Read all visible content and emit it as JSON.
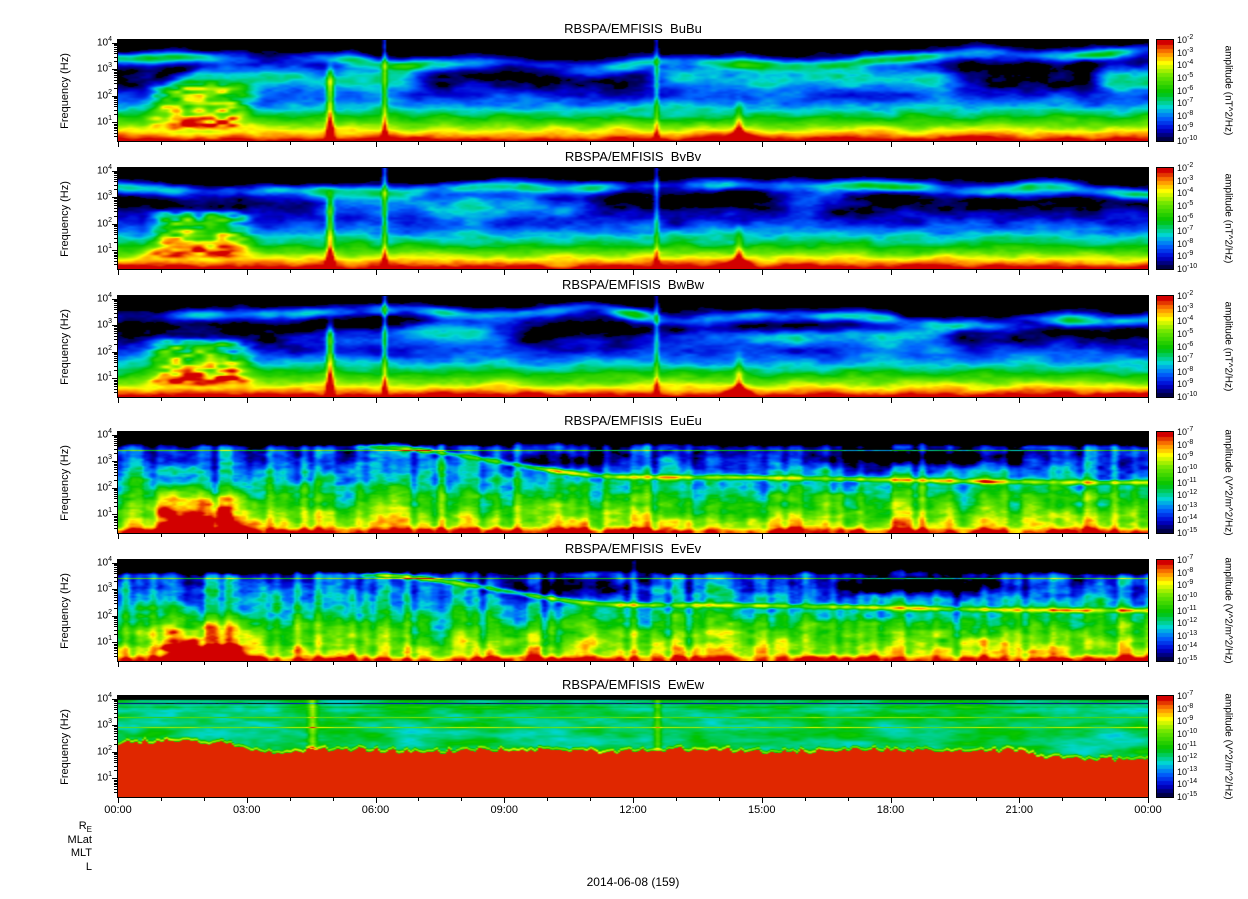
{
  "figure": {
    "date_label": "2014-06-08 (159)",
    "footer_rows": [
      {
        "main": "R",
        "sub": "E"
      },
      {
        "main": "MLat",
        "sub": ""
      },
      {
        "main": "MLT",
        "sub": ""
      },
      {
        "main": "L",
        "sub": ""
      }
    ],
    "x_axis": {
      "tick_labels": [
        "00:00",
        "03:00",
        "06:00",
        "09:00",
        "12:00",
        "15:00",
        "18:00",
        "21:00",
        "00:00"
      ],
      "minor_tick_interval": "1 hour",
      "range": [
        "2014-06-08 00:00",
        "2014-06-09 00:00"
      ]
    }
  },
  "chart_data": [
    {
      "type": "heatmap",
      "title": "RBSPA/EMFISIS  BuBu",
      "ylabel": "Frequency (Hz)",
      "y_scale": "log",
      "y_tick_exponents": [
        4,
        3,
        2,
        1
      ],
      "ylim_hz": [
        2,
        12000
      ],
      "colorbar": {
        "label": "amplitude (nT^2/Hz)",
        "tick_exponents": [
          -2,
          -3,
          -4,
          -5,
          -6,
          -7,
          -8,
          -9,
          -10
        ],
        "min": 1e-10,
        "max": 0.01
      },
      "render": {
        "kind": "B",
        "seed": 1
      },
      "features": [
        "intense broadband power at lowest frequencies (red/yellow)",
        "patchy 1-4 kHz emission band",
        "low-frequency burst structures ~00:30-03:00",
        "black (below threshold) region above ~4 kHz"
      ]
    },
    {
      "type": "heatmap",
      "title": "RBSPA/EMFISIS  BvBv",
      "ylabel": "Frequency (Hz)",
      "y_scale": "log",
      "y_tick_exponents": [
        4,
        3,
        2,
        1
      ],
      "ylim_hz": [
        2,
        12000
      ],
      "colorbar": {
        "label": "amplitude (nT^2/Hz)",
        "tick_exponents": [
          -2,
          -3,
          -4,
          -5,
          -6,
          -7,
          -8,
          -9,
          -10
        ],
        "min": 1e-10,
        "max": 0.01
      },
      "render": {
        "kind": "B",
        "seed": 2
      },
      "features": [
        "similar to BuBu: strong low-frequency band, kHz chorus band, early-morning bursts"
      ]
    },
    {
      "type": "heatmap",
      "title": "RBSPA/EMFISIS  BwBw",
      "ylabel": "Frequency (Hz)",
      "y_scale": "log",
      "y_tick_exponents": [
        4,
        3,
        2,
        1
      ],
      "ylim_hz": [
        2,
        12000
      ],
      "colorbar": {
        "label": "amplitude (nT^2/Hz)",
        "tick_exponents": [
          -2,
          -3,
          -4,
          -5,
          -6,
          -7,
          -8,
          -9,
          -10
        ],
        "min": 1e-10,
        "max": 0.01
      },
      "render": {
        "kind": "B",
        "seed": 3
      },
      "features": [
        "strong yellow/green low-frequency band, diffuse green mid frequencies, kHz band patches"
      ]
    },
    {
      "type": "heatmap",
      "title": "RBSPA/EMFISIS  EuEu",
      "ylabel": "Frequency (Hz)",
      "y_scale": "log",
      "y_tick_exponents": [
        4,
        3,
        2,
        1
      ],
      "ylim_hz": [
        2,
        12000
      ],
      "colorbar": {
        "label": "amplitude (V^2/m^2/Hz)",
        "tick_exponents": [
          -7,
          -8,
          -9,
          -10,
          -11,
          -12,
          -13,
          -14,
          -15
        ],
        "min": 1e-15,
        "max": 1e-07
      },
      "render": {
        "kind": "E",
        "seed": 4
      },
      "features": [
        "intense red low-frequency emission 00:30-03:00",
        "yellow band descending from ~3 kHz (06:00) to ~1 kHz (13:00)",
        "many vertical striations",
        "black above ~4 kHz with thin horizontal lines"
      ]
    },
    {
      "type": "heatmap",
      "title": "RBSPA/EMFISIS  EvEv",
      "ylabel": "Frequency (Hz)",
      "y_scale": "log",
      "y_tick_exponents": [
        4,
        3,
        2,
        1
      ],
      "ylim_hz": [
        2,
        12000
      ],
      "colorbar": {
        "label": "amplitude (V^2/m^2/Hz)",
        "tick_exponents": [
          -7,
          -8,
          -9,
          -10,
          -11,
          -12,
          -13,
          -14,
          -15
        ],
        "min": 1e-15,
        "max": 1e-07
      },
      "render": {
        "kind": "E",
        "seed": 5
      },
      "features": [
        "very similar to EuEu: early red bursts, descending yellow band, vertical striations"
      ]
    },
    {
      "type": "heatmap",
      "title": "RBSPA/EMFISIS  EwEw",
      "ylabel": "Frequency (Hz)",
      "y_scale": "log",
      "y_tick_exponents": [
        4,
        3,
        2,
        1
      ],
      "ylim_hz": [
        2,
        12000
      ],
      "colorbar": {
        "label": "amplitude (V^2/m^2/Hz)",
        "tick_exponents": [
          -7,
          -8,
          -9,
          -10,
          -11,
          -12,
          -13,
          -14,
          -15
        ],
        "min": 1e-15,
        "max": 1e-07
      },
      "render": {
        "kind": "Ew",
        "seed": 6
      },
      "features": [
        "saturated red below ~100-200 Hz all day with comb-like upper edge",
        "green/cyan diffuse region above",
        "several persistent horizontal interference lines between 1-10 kHz",
        "yellow-green line near 1 kHz"
      ]
    }
  ],
  "colors": {
    "background": "#ffffff",
    "frame": "#000000",
    "colormap": "rainbow (dark blue -> blue -> cyan -> green -> yellow -> orange -> red), black below minimum"
  }
}
